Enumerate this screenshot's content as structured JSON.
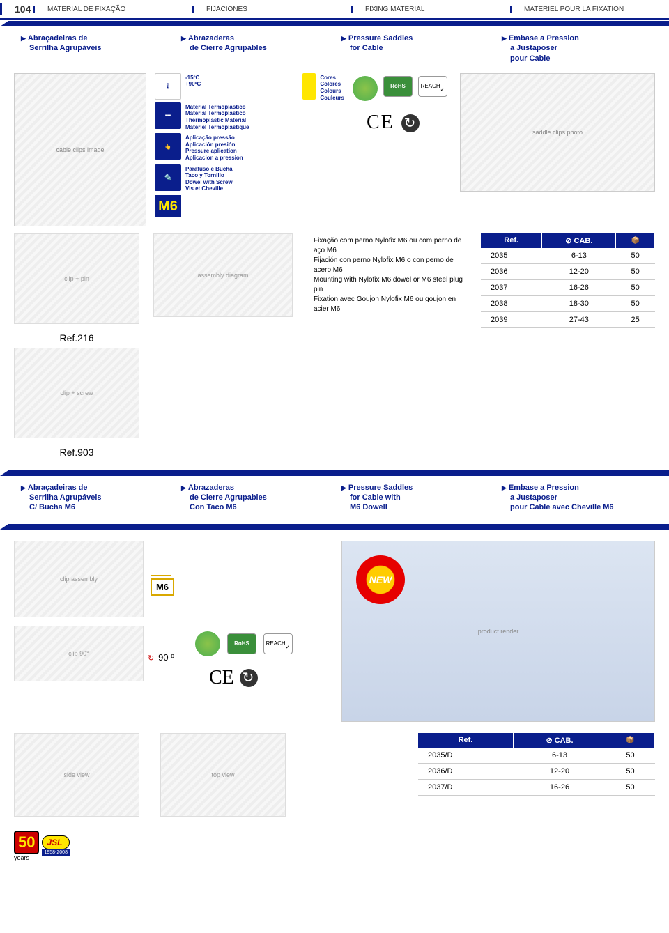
{
  "page_number": "104",
  "top_labels": [
    "MATERIAL DE FIXAÇÃO",
    "FIJACIONES",
    "FIXING MATERIAL",
    "MATERIEL POUR LA FIXATION"
  ],
  "section1": {
    "cols": [
      [
        "Abraçadeiras de",
        "Serrilha Agrupáveis"
      ],
      [
        "Abrazaderas",
        "de Cierre Agrupables"
      ],
      [
        "Pressure Saddles",
        "for Cable"
      ],
      [
        "Embase a Pression",
        "a Justaposer",
        "pour Cable"
      ]
    ]
  },
  "specs": {
    "temp": "-15ºC\n+90ºC",
    "material": [
      "Material Termoplástico",
      "Material Termoplastico",
      "Thermoplastic Material",
      "Materiel Termoplastique"
    ],
    "application": [
      "Aplicação pressão",
      "Aplicación presión",
      "Pressure aplication",
      "Aplicacion a pression"
    ],
    "screw": [
      "Parafuso e Bucha",
      "Taco y Tornillo",
      "Dowel with Screw",
      "Vis et Cheville"
    ],
    "m6": "M6",
    "colors_label": [
      "Cores",
      "Colores",
      "Colours",
      "Couleurs"
    ],
    "certs": {
      "rohs": "RoHS",
      "reach": "REACH"
    },
    "ce": "CE"
  },
  "product1": {
    "ref1": "Ref.216",
    "ref2": "Ref.903",
    "desc": [
      "Fixação com perno Nylofix M6 ou com perno de aço M6",
      "Fijación con perno Nylofix  M6 o con perno de acero M6",
      "Mounting with Nylofix M6 dowel or M6 steel plug pin",
      "Fixation avec Goujon Nylofix M6 ou  goujon en acier M6"
    ],
    "table": {
      "headers": [
        "Ref.",
        "CAB.",
        ""
      ],
      "rows": [
        [
          "2035",
          "6-13",
          "50"
        ],
        [
          "2036",
          "12-20",
          "50"
        ],
        [
          "2037",
          "16-26",
          "50"
        ],
        [
          "2038",
          "18-30",
          "50"
        ],
        [
          "2039",
          "27-43",
          "25"
        ]
      ]
    }
  },
  "section2": {
    "cols": [
      [
        "Abraçadeiras de",
        "Serrilha Agrupáveis",
        "C/ Bucha M6"
      ],
      [
        "Abrazaderas",
        "de Cierre Agrupables",
        "Con Taco M6"
      ],
      [
        "Pressure Saddles",
        "for Cable with",
        "M6 Dowell"
      ],
      [
        "Embase a Pression",
        "a Justaposer",
        "pour Cable avec Cheville M6"
      ]
    ]
  },
  "lower": {
    "m6": "M6",
    "deg": "90 º",
    "new": "NEW",
    "table": {
      "headers": [
        "Ref.",
        "CAB.",
        ""
      ],
      "rows": [
        [
          "2035/D",
          "6-13",
          "50"
        ],
        [
          "2036/D",
          "12-20",
          "50"
        ],
        [
          "2037/D",
          "16-26",
          "50"
        ]
      ]
    }
  },
  "footer": {
    "num": "50",
    "years": "years",
    "jsl": "JSL",
    "range": "1958-2008"
  },
  "colors": {
    "brand_blue": "#0a1e8c",
    "accent_yellow": "#ffe600",
    "rohs_green": "#3a8f3a",
    "new_red": "#e60000"
  }
}
